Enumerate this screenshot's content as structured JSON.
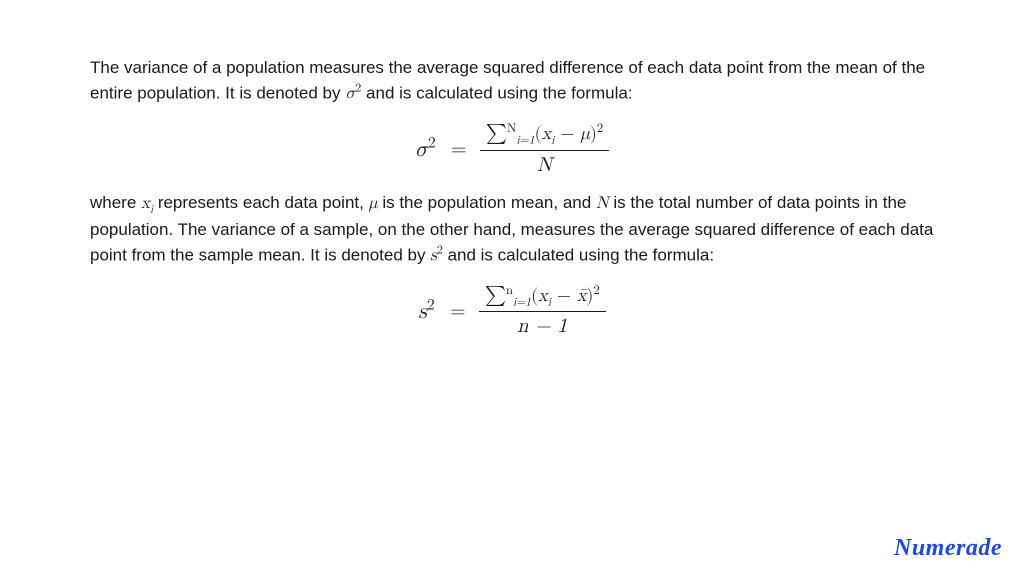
{
  "text": {
    "para1_a": "The variance of a population measures the average squared difference of each data point from the mean of the entire population. It is denoted by ",
    "sigma2_inline": "σ",
    "para1_b": " and is calculated using the formula:",
    "para2_a": "where ",
    "xi_inline": "x",
    "para2_b": " represents each data point, ",
    "mu_inline": "μ",
    "para2_c": " is the population mean, and ",
    "N_inline": "N",
    "para2_d": " is the total number of data points in the population. The variance of a sample, on the other hand, measures the average squared difference of each data point from the sample mean. It is denoted by ",
    "s2_inline": "s",
    "para2_e": " and is calculated using the formula:"
  },
  "formula1": {
    "lhs_base": "σ",
    "lhs_exp": "2",
    "eq": "=",
    "num_sigma": "∑",
    "num_sigma_upper": "N",
    "num_sigma_lower": "i=1",
    "num_open": "(",
    "num_x": "x",
    "num_x_sub": "i",
    "num_minus": " − ",
    "num_mu": "μ",
    "num_close": ")",
    "num_exp": "2",
    "den": "N"
  },
  "formula2": {
    "lhs_base": "s",
    "lhs_exp": "2",
    "eq": "=",
    "num_sigma": "∑",
    "num_sigma_upper": "n",
    "num_sigma_lower": "i=1",
    "num_open": "(",
    "num_x": "x",
    "num_x_sub": "i",
    "num_minus": " − ",
    "num_xbar": "x̄",
    "num_close": ")",
    "num_exp": "2",
    "den": "n − 1"
  },
  "brand": {
    "text": "Numerade",
    "color": "#2048e8"
  },
  "colors": {
    "text": "#1a1a1a",
    "background": "#ffffff"
  }
}
